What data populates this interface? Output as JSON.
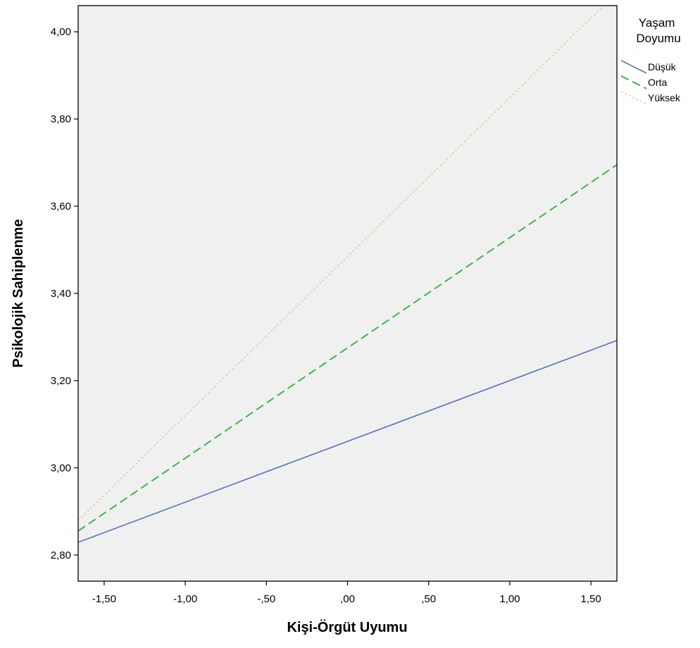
{
  "chart_data": {
    "type": "line",
    "title": "",
    "xlabel": "Kişi-Örgüt Uyumu",
    "ylabel": "Psikolojik Sahiplenme",
    "xlim": [
      -1.66,
      1.66
    ],
    "ylim": [
      2.74,
      4.06
    ],
    "x_ticks": [
      -1.5,
      -1.0,
      -0.5,
      0.0,
      0.5,
      1.0,
      1.5
    ],
    "x_tick_labels": [
      "-1,50",
      "-1,00",
      "-,50",
      ",00",
      ",50",
      "1,00",
      "1,50"
    ],
    "y_ticks": [
      2.8,
      3.0,
      3.2,
      3.4,
      3.6,
      3.8,
      4.0
    ],
    "y_tick_labels": [
      "2,80",
      "3,00",
      "3,20",
      "3,40",
      "3,60",
      "3,80",
      "4,00"
    ],
    "grid": false,
    "legend": {
      "title": "Yaşam Doyumu",
      "placement": "right"
    },
    "series": [
      {
        "name": "Düşük",
        "x": [
          -1.66,
          1.66
        ],
        "y": [
          2.829,
          3.292
        ],
        "color": "#5a6fc0",
        "dash": "solid"
      },
      {
        "name": "Orta",
        "x": [
          -1.66,
          1.66
        ],
        "y": [
          2.855,
          3.695
        ],
        "color": "#3cb54a",
        "dash": "dashed"
      },
      {
        "name": "Yüksek",
        "x": [
          -1.66,
          1.66
        ],
        "y": [
          2.879,
          4.09
        ],
        "color": "#d9d4a3",
        "dash": "dotted"
      }
    ]
  }
}
